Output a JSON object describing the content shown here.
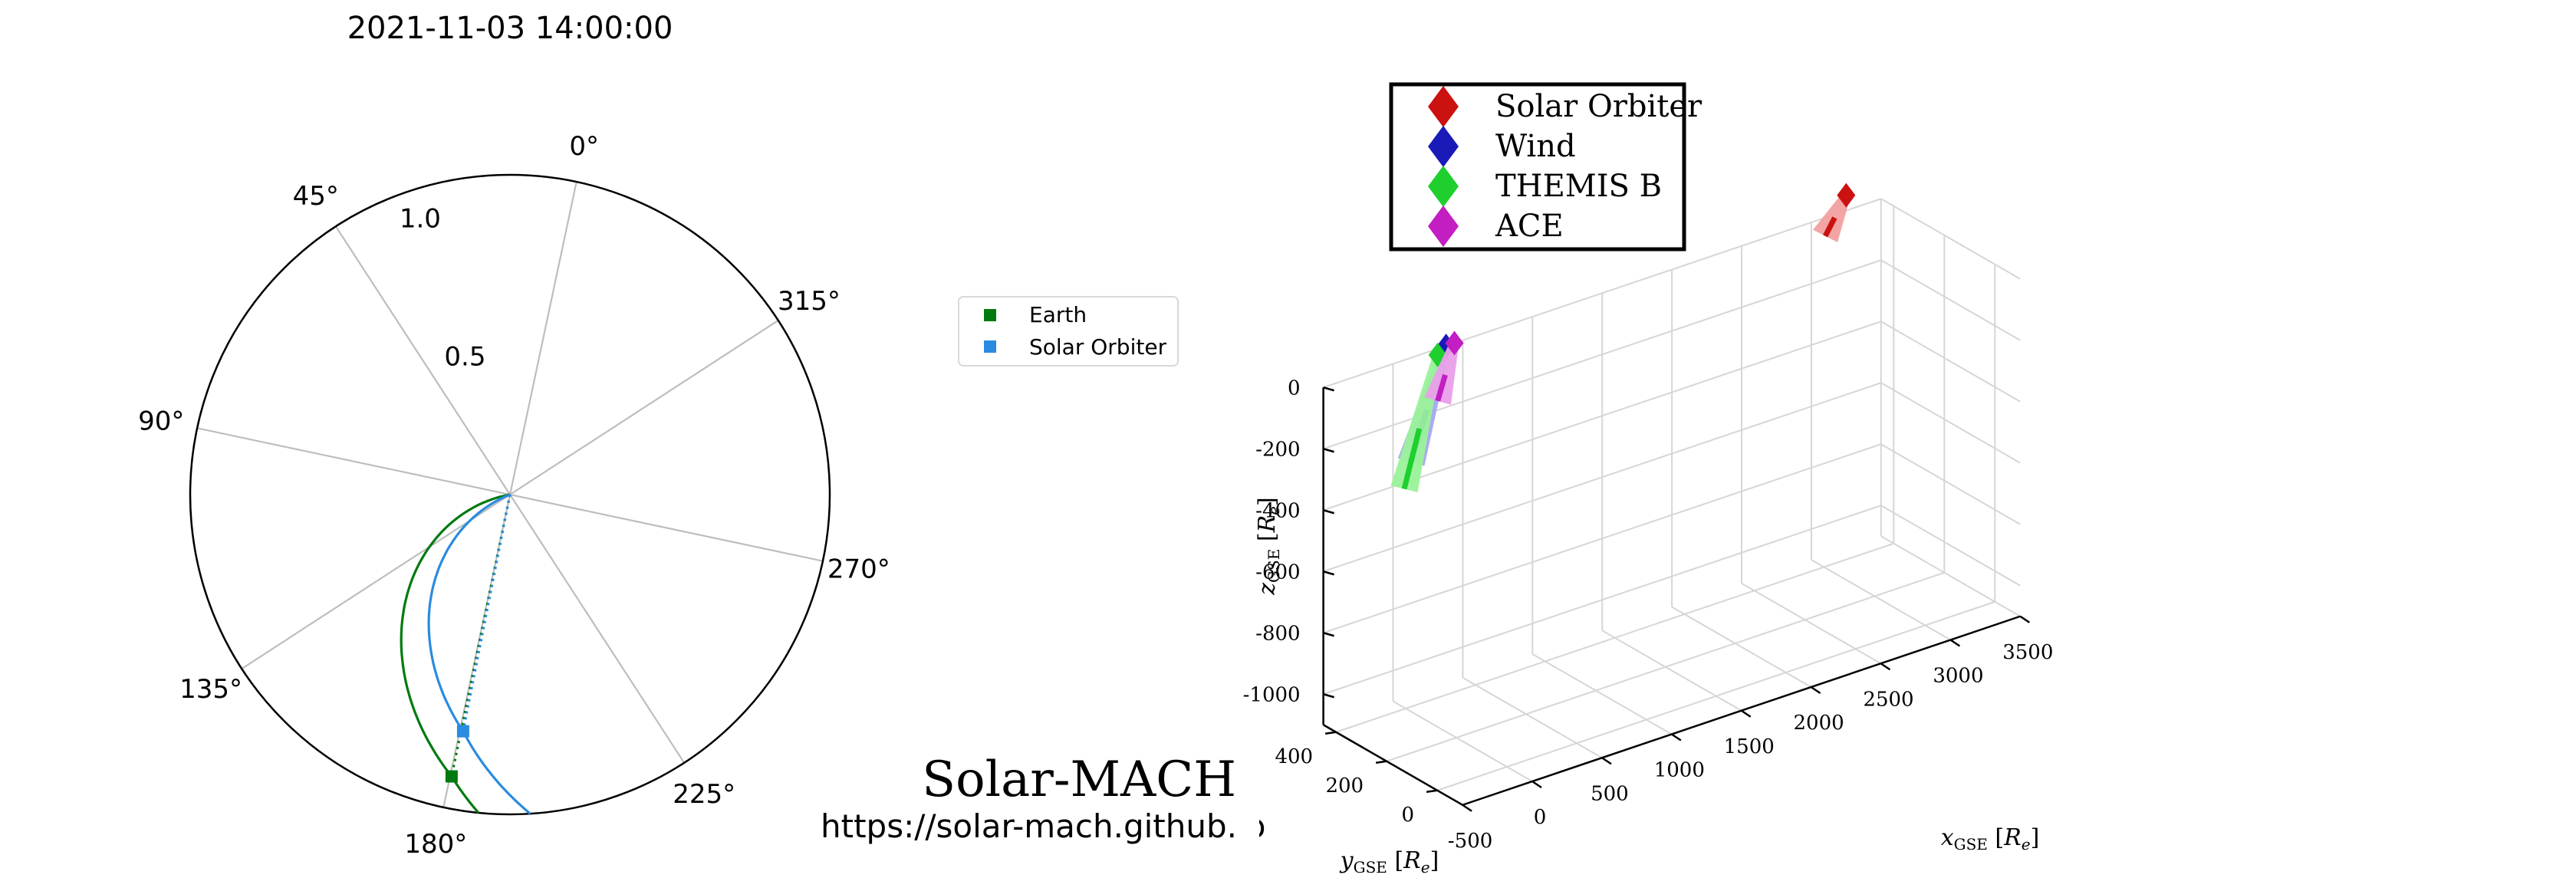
{
  "figure": {
    "timestamp": "2021-11-03 14:00:00",
    "brand_title": "Solar-MACH",
    "brand_url": "https://solar-mach.github.io"
  },
  "chart_data": [
    {
      "type": "polar",
      "angle_labels": [
        "0°",
        "45°",
        "90°",
        "135°",
        "180°",
        "225°",
        "270°",
        "315°"
      ],
      "radial_ticks": [
        0.5,
        1.0
      ],
      "radial_tick_labels": [
        "0.5",
        "1.0"
      ],
      "rlim": [
        0,
        1.1
      ],
      "theta_direction": "counter-clockwise, 0° at top",
      "grid": true,
      "legend_position": "right",
      "series": [
        {
          "name": "Earth",
          "r": 0.99,
          "theta_deg": 180.3,
          "color": "#007a0f",
          "marker": "square",
          "spiral_sweep_deg": 68
        },
        {
          "name": "Solar Orbiter",
          "r": 0.83,
          "theta_deg": 180.8,
          "color": "#2a8be0",
          "marker": "square",
          "spiral_sweep_deg": 57
        }
      ]
    },
    {
      "type": "scatter3d",
      "xlabel": "x_GSE [R_e]",
      "ylabel": "y_GSE [R_e]",
      "zlabel": "z_GSE [R_e]",
      "xlim": [
        -500,
        3500
      ],
      "ylim": [
        -100,
        450
      ],
      "zlim": [
        -1100,
        0
      ],
      "x_ticks": [
        -500,
        0,
        500,
        1000,
        1500,
        2000,
        2500,
        3000,
        3500
      ],
      "y_ticks": [
        0,
        200,
        400
      ],
      "z_ticks": [
        0,
        -200,
        -400,
        -600,
        -800,
        -1000
      ],
      "grid": true,
      "legend_position": "top-left",
      "series": [
        {
          "name": "Solar Orbiter",
          "color": "#cc1111",
          "trail_color": "#f2a0a0",
          "marker": "diamond",
          "points": [
            {
              "x": 3250,
              "y": 0,
              "z": 50
            },
            {
              "x": 3100,
              "y": 0,
              "z": -60
            }
          ]
        },
        {
          "name": "Wind",
          "color": "#1a1ab8",
          "trail_color": "#a6a6f2",
          "marker": "diamond",
          "points": [
            {
              "x": 380,
              "y": 0,
              "z": 0
            },
            {
              "x": 130,
              "y": 0,
              "z": -340
            }
          ]
        },
        {
          "name": "THEMIS B",
          "color": "#1ecf2e",
          "trail_color": "#9af29a",
          "marker": "diamond",
          "points": [
            {
              "x": 320,
              "y": 0,
              "z": -20
            },
            {
              "x": 80,
              "y": 0,
              "z": -420
            }
          ]
        },
        {
          "name": "ACE",
          "color": "#c21ec2",
          "trail_color": "#e9a0e9",
          "marker": "diamond",
          "points": [
            {
              "x": 440,
              "y": 0,
              "z": 0
            },
            {
              "x": 320,
              "y": 0,
              "z": -170
            }
          ]
        }
      ]
    }
  ]
}
